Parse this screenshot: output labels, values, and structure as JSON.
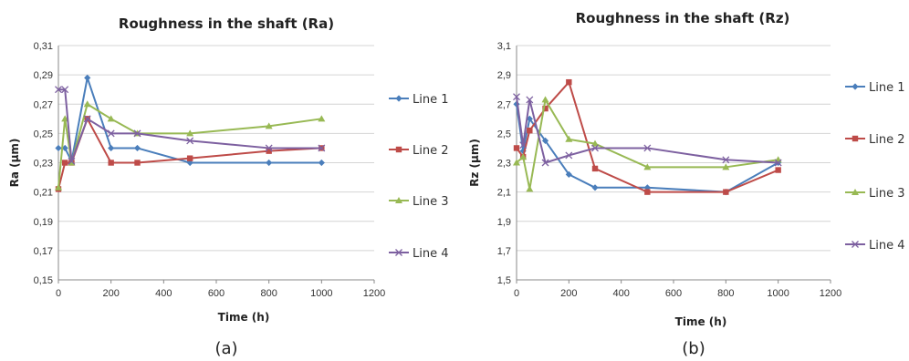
{
  "chart_data": [
    {
      "type": "line",
      "title": "Roughness in the shaft (Ra)",
      "xlabel": "Time (h)",
      "ylabel": "Ra (µm)",
      "caption": "(a)",
      "xlim": [
        0,
        1200
      ],
      "ylim": [
        0.15,
        0.31
      ],
      "xticks": [
        0,
        200,
        400,
        600,
        800,
        1000,
        1200
      ],
      "yticks": [
        0.15,
        0.17,
        0.19,
        0.21,
        0.23,
        0.25,
        0.27,
        0.29,
        0.31
      ],
      "ytick_labels": [
        "0,15",
        "0,17",
        "0,19",
        "0,21",
        "0,23",
        "0,25",
        "0,27",
        "0,29",
        "0,31"
      ],
      "grid": "horizontal",
      "legend": "right",
      "series": [
        {
          "name": "Line 1",
          "color": "#4a7ebb",
          "marker": "diamond",
          "x": [
            0,
            25,
            50,
            110,
            200,
            300,
            500,
            800,
            1000
          ],
          "y": [
            0.24,
            0.24,
            0.231,
            0.288,
            0.24,
            0.24,
            0.23,
            0.23,
            0.23
          ]
        },
        {
          "name": "Line 2",
          "color": "#be4b48",
          "marker": "square",
          "x": [
            0,
            25,
            50,
            110,
            200,
            300,
            500,
            800,
            1000
          ],
          "y": [
            0.212,
            0.23,
            0.23,
            0.26,
            0.23,
            0.23,
            0.233,
            0.238,
            0.24
          ]
        },
        {
          "name": "Line 3",
          "color": "#98b954",
          "marker": "triangle",
          "x": [
            0,
            25,
            50,
            110,
            200,
            300,
            500,
            800,
            1000
          ],
          "y": [
            0.213,
            0.26,
            0.23,
            0.27,
            0.26,
            0.25,
            0.25,
            0.255,
            0.26
          ]
        },
        {
          "name": "Line 4",
          "color": "#7d60a0",
          "marker": "x",
          "x": [
            0,
            25,
            50,
            110,
            200,
            300,
            500,
            800,
            1000
          ],
          "y": [
            0.28,
            0.28,
            0.231,
            0.26,
            0.25,
            0.25,
            0.245,
            0.24,
            0.24
          ]
        }
      ]
    },
    {
      "type": "line",
      "title": "Roughness in the shaft (Rz)",
      "xlabel": "Time (h)",
      "ylabel": "Rz (µm)",
      "caption": "(b)",
      "xlim": [
        0,
        1200
      ],
      "ylim": [
        1.5,
        3.1
      ],
      "xticks": [
        0,
        200,
        400,
        600,
        800,
        1000,
        1200
      ],
      "yticks": [
        1.5,
        1.7,
        1.9,
        2.1,
        2.3,
        2.5,
        2.7,
        2.9,
        3.1
      ],
      "ytick_labels": [
        "1,5",
        "1,7",
        "1,9",
        "2,1",
        "2,3",
        "2,5",
        "2,7",
        "2,9",
        "3,1"
      ],
      "grid": "horizontal",
      "legend": "right",
      "series": [
        {
          "name": "Line 1",
          "color": "#4a7ebb",
          "marker": "diamond",
          "x": [
            0,
            25,
            50,
            110,
            200,
            300,
            500,
            800,
            1000
          ],
          "y": [
            2.7,
            2.38,
            2.6,
            2.45,
            2.22,
            2.13,
            2.13,
            2.1,
            2.3
          ]
        },
        {
          "name": "Line 2",
          "color": "#be4b48",
          "marker": "square",
          "x": [
            0,
            25,
            50,
            110,
            200,
            300,
            500,
            800,
            1000
          ],
          "y": [
            2.4,
            2.34,
            2.52,
            2.67,
            2.85,
            2.26,
            2.1,
            2.1,
            2.25
          ]
        },
        {
          "name": "Line 3",
          "color": "#98b954",
          "marker": "triangle",
          "x": [
            0,
            25,
            50,
            110,
            200,
            300,
            500,
            800,
            1000
          ],
          "y": [
            2.3,
            2.34,
            2.12,
            2.73,
            2.46,
            2.43,
            2.27,
            2.27,
            2.32
          ]
        },
        {
          "name": "Line 4",
          "color": "#7d60a0",
          "marker": "x",
          "x": [
            0,
            25,
            50,
            110,
            200,
            300,
            500,
            800,
            1000
          ],
          "y": [
            2.75,
            2.42,
            2.73,
            2.3,
            2.35,
            2.4,
            2.4,
            2.32,
            2.3
          ]
        }
      ]
    }
  ]
}
